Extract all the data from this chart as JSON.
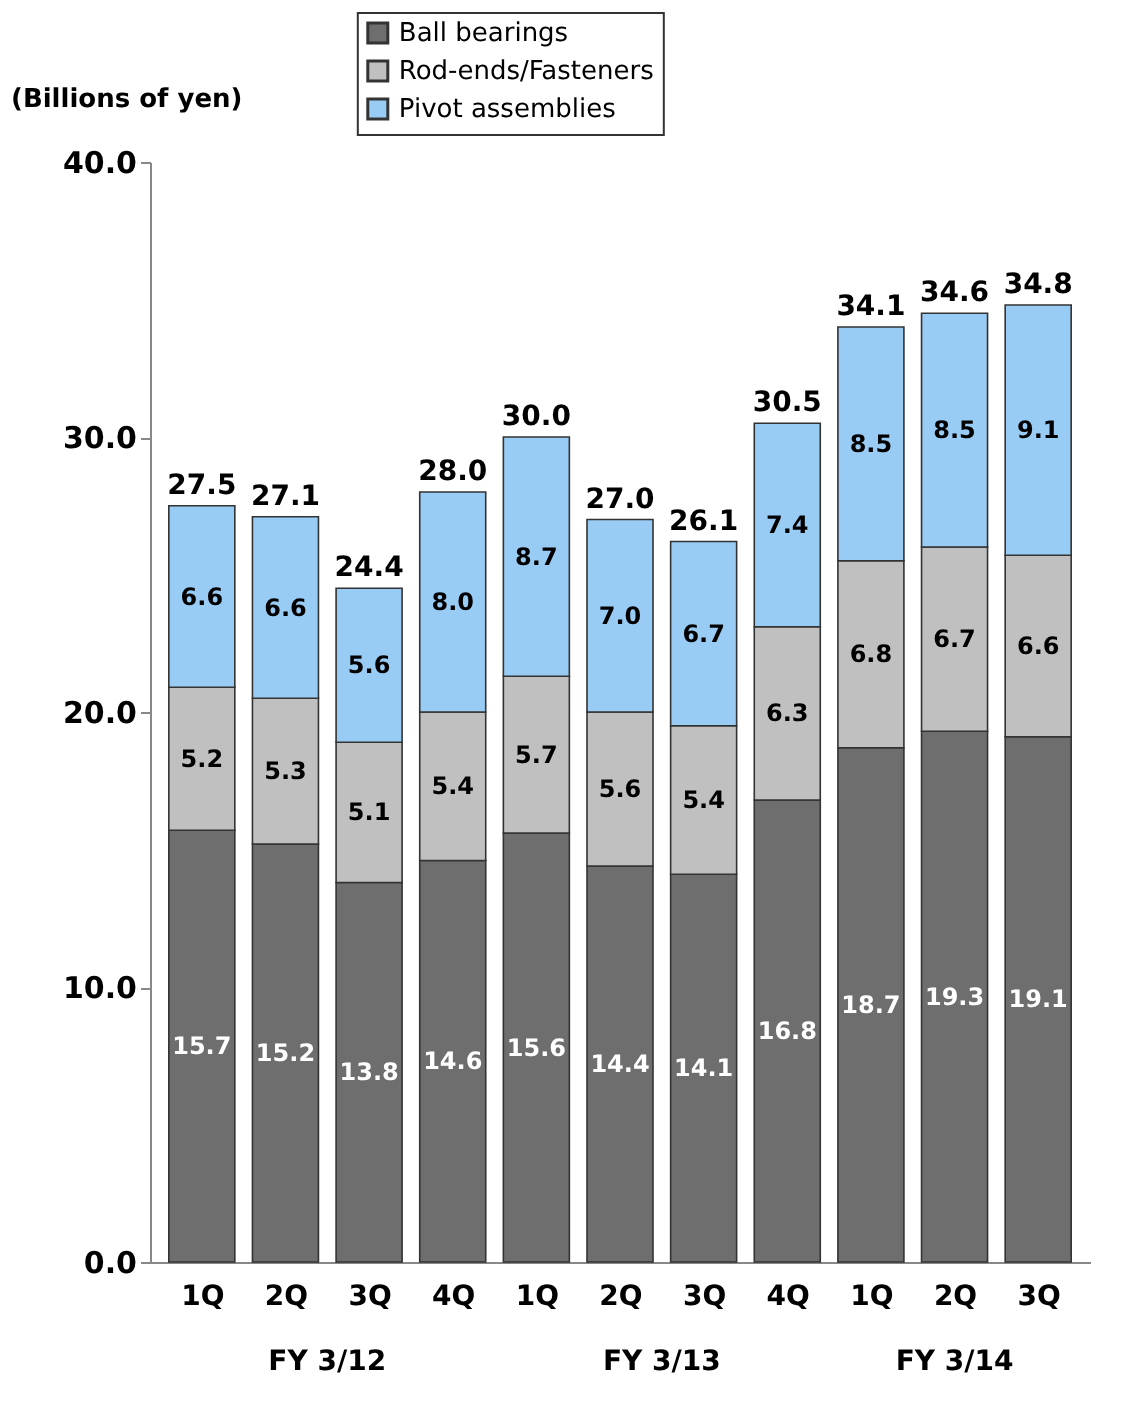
{
  "chart_data": {
    "type": "bar",
    "stacked": true,
    "ylabel": "(Billions of yen)",
    "categories": [
      "1Q",
      "2Q",
      "3Q",
      "4Q",
      "1Q",
      "2Q",
      "3Q",
      "4Q",
      "1Q",
      "2Q",
      "3Q"
    ],
    "series": [
      {
        "name": "Ball bearings",
        "color": "#6e6e6e",
        "values": [
          15.7,
          15.2,
          13.8,
          14.6,
          15.6,
          14.4,
          14.1,
          16.8,
          18.7,
          19.3,
          19.1
        ],
        "value_labels": [
          "15.7",
          "15.2",
          "13.8",
          "14.6",
          "15.6",
          "14.4",
          "14.1",
          "16.8",
          "18.7",
          "19.3",
          "19.1"
        ]
      },
      {
        "name": "Rod-ends/Fasteners",
        "color": "#c0c0c0",
        "values": [
          5.2,
          5.3,
          5.1,
          5.4,
          5.7,
          5.6,
          5.4,
          6.3,
          6.8,
          6.7,
          6.6
        ],
        "value_labels": [
          "5.2",
          "5.3",
          "5.1",
          "5.4",
          "5.7",
          "5.6",
          "5.4",
          "6.3",
          "6.8",
          "6.7",
          "6.6"
        ]
      },
      {
        "name": "Pivot assemblies",
        "color": "#99ccf5",
        "values": [
          6.6,
          6.6,
          5.6,
          8.0,
          8.7,
          7.0,
          6.7,
          7.4,
          8.5,
          8.5,
          9.1
        ],
        "value_labels": [
          "6.6",
          "6.6",
          "5.6",
          "8.0",
          "8.7",
          "7.0",
          "6.7",
          "7.4",
          "8.5",
          "8.5",
          "9.1"
        ]
      }
    ],
    "totals": [
      "27.5",
      "27.1",
      "24.4",
      "28.0",
      "30.0",
      "27.0",
      "26.1",
      "30.5",
      "34.1",
      "34.6",
      "34.8"
    ],
    "annotations": [
      "FY 3/12",
      "FY 3/13",
      "FY 3/14"
    ],
    "ylim": [
      0,
      40
    ],
    "yticks": [
      {
        "value": 0,
        "label": "0.0"
      },
      {
        "value": 10,
        "label": "10.0"
      },
      {
        "value": 20,
        "label": "20.0"
      },
      {
        "value": 30,
        "label": "30.0"
      },
      {
        "value": 40,
        "label": "40.0"
      }
    ],
    "grid": false,
    "legend": "top"
  }
}
